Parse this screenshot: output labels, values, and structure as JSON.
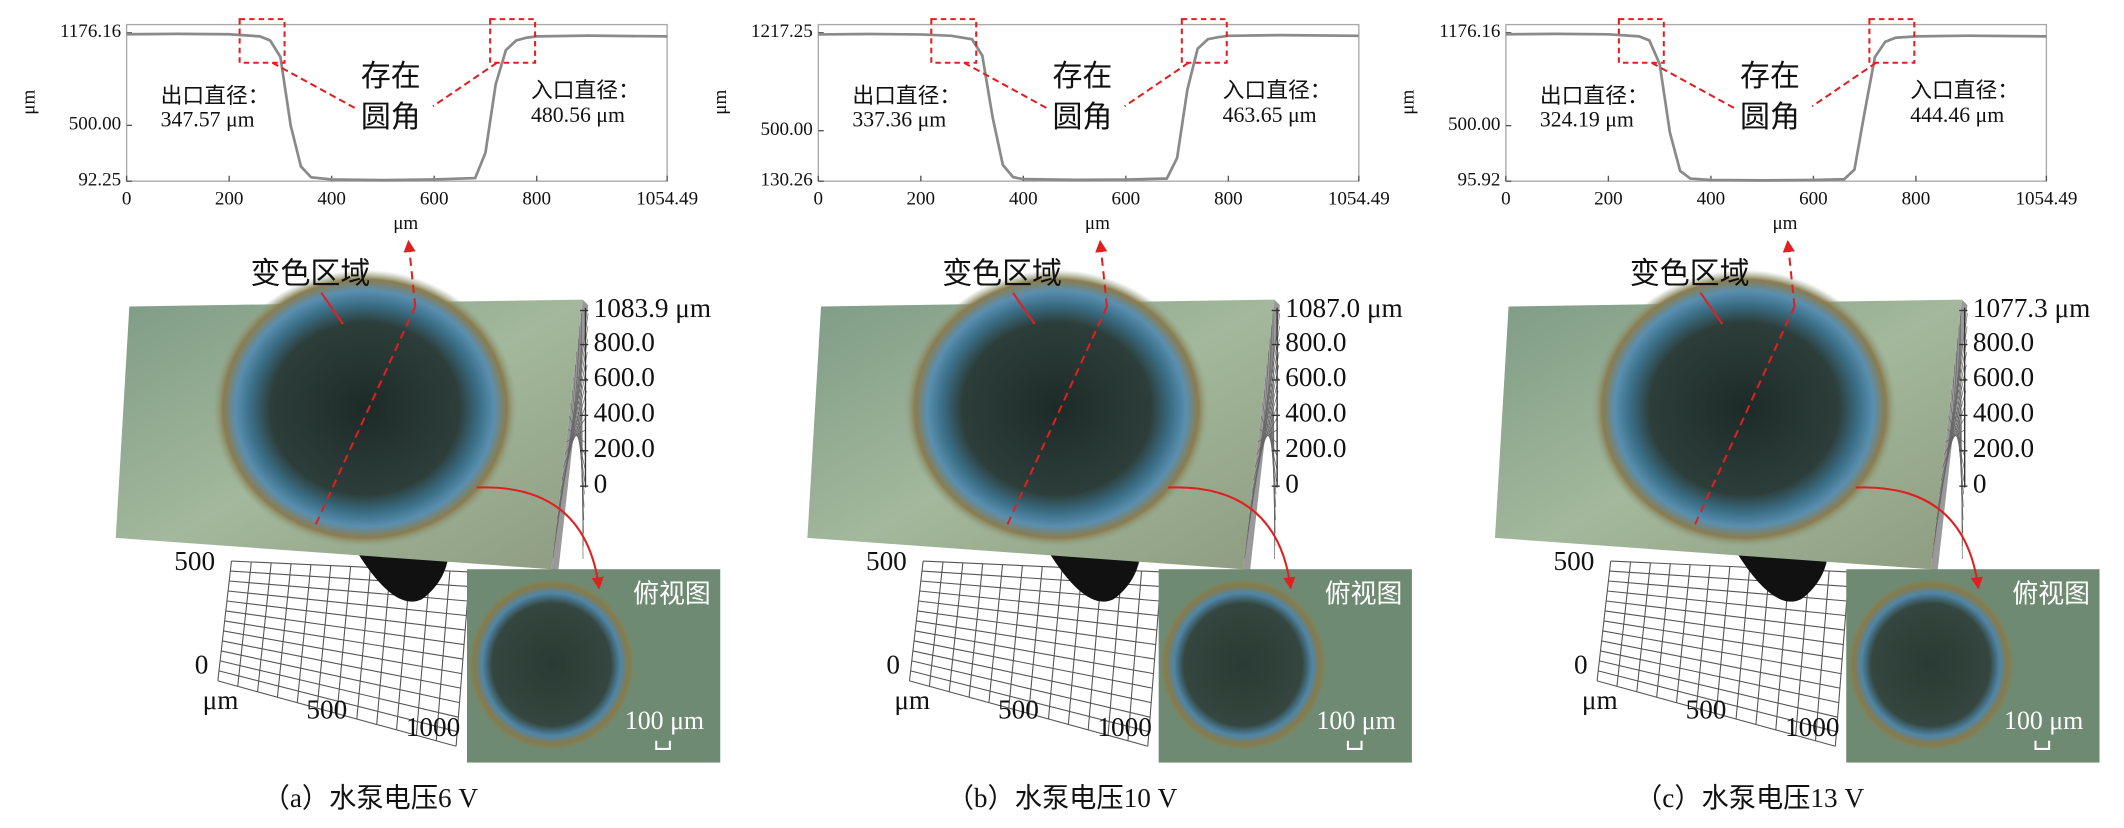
{
  "chart_data": [
    {
      "type": "line",
      "color": "#8a8a8a",
      "xlabel": "μm",
      "ylabel": "μm",
      "x": [
        0,
        100,
        200,
        260,
        280,
        300,
        320,
        340,
        360,
        400,
        500,
        600,
        680,
        700,
        720,
        740,
        760,
        780,
        800,
        900,
        1054.49
      ],
      "values": [
        1165,
        1168,
        1165,
        1150,
        1120,
        1000,
        500,
        200,
        120,
        105,
        100,
        105,
        115,
        300,
        800,
        1050,
        1120,
        1140,
        1150,
        1155,
        1150
      ],
      "xlim": [
        0,
        1054.49
      ],
      "xticks": [
        0,
        200,
        400,
        600,
        800,
        1054.49
      ],
      "ylim": [
        92.25,
        1176.16
      ],
      "yticks": [
        92.25,
        {
          "value": 500,
          "label": "500.00"
        },
        1176.16
      ],
      "annotations": [
        "出口直径：",
        "347.57 μm",
        "存在",
        "圆角",
        "入口直径：",
        "480.56 μm"
      ]
    },
    {
      "type": "line",
      "color": "#8a8a8a",
      "xlabel": "μm",
      "ylabel": "μm",
      "x": [
        0,
        100,
        200,
        260,
        300,
        320,
        340,
        360,
        380,
        400,
        500,
        600,
        680,
        700,
        720,
        740,
        760,
        780,
        800,
        900,
        1054.49
      ],
      "values": [
        1205,
        1208,
        1205,
        1195,
        1170,
        1050,
        600,
        250,
        160,
        145,
        140,
        142,
        150,
        300,
        800,
        1100,
        1170,
        1185,
        1195,
        1200,
        1195
      ],
      "xlim": [
        0,
        1054.49
      ],
      "xticks": [
        0,
        200,
        400,
        600,
        800,
        1054.49
      ],
      "ylim": [
        130.26,
        1217.25
      ],
      "yticks": [
        130.26,
        {
          "value": 500,
          "label": "500.00"
        },
        1217.25
      ],
      "annotations": [
        "出口直径：",
        "337.36 μm",
        "存在",
        "圆角",
        "入口直径：",
        "463.65 μm"
      ]
    },
    {
      "type": "line",
      "color": "#8a8a8a",
      "xlabel": "μm",
      "ylabel": "μm",
      "x": [
        0,
        100,
        200,
        260,
        280,
        300,
        320,
        340,
        360,
        400,
        500,
        600,
        660,
        680,
        700,
        720,
        740,
        760,
        800,
        900,
        1054.49
      ],
      "values": [
        1165,
        1168,
        1165,
        1150,
        1120,
        950,
        450,
        170,
        115,
        105,
        102,
        105,
        110,
        180,
        600,
        1000,
        1110,
        1140,
        1150,
        1155,
        1150
      ],
      "xlim": [
        0,
        1054.49
      ],
      "xticks": [
        0,
        200,
        400,
        600,
        800,
        1054.49
      ],
      "ylim": [
        95.92,
        1176.16
      ],
      "yticks": [
        95.92,
        {
          "value": 500,
          "label": "500.00"
        },
        1176.16
      ],
      "annotations": [
        "出口直径：",
        "324.19 μm",
        "存在",
        "圆角",
        "入口直径：",
        "444.46 μm"
      ]
    }
  ],
  "surfaces": [
    {
      "region_label": "变色区域",
      "z_ticks": [
        "1083.9 μm",
        "800.0",
        "600.0",
        "400.0",
        "200.0",
        "0"
      ],
      "floor_labels": [
        "500",
        "0",
        "μm",
        "500",
        "1000"
      ],
      "inset_title": "俯视图",
      "scale_bar": "100 μm"
    },
    {
      "region_label": "变色区域",
      "z_ticks": [
        "1087.0 μm",
        "800.0",
        "600.0",
        "400.0",
        "200.0",
        "0"
      ],
      "floor_labels": [
        "500",
        "0",
        "μm",
        "500",
        "1000"
      ],
      "inset_title": "俯视图",
      "scale_bar": "100 μm"
    },
    {
      "region_label": "变色区域",
      "z_ticks": [
        "1077.3 μm",
        "800.0",
        "600.0",
        "400.0",
        "200.0",
        "0"
      ],
      "floor_labels": [
        "500",
        "0",
        "μm",
        "500",
        "1000"
      ],
      "inset_title": "俯视图",
      "scale_bar": "100 μm"
    }
  ],
  "captions": [
    "（a）水泵电压6 V",
    "（b）水泵电压10 V",
    "（c）水泵电压13 V"
  ]
}
